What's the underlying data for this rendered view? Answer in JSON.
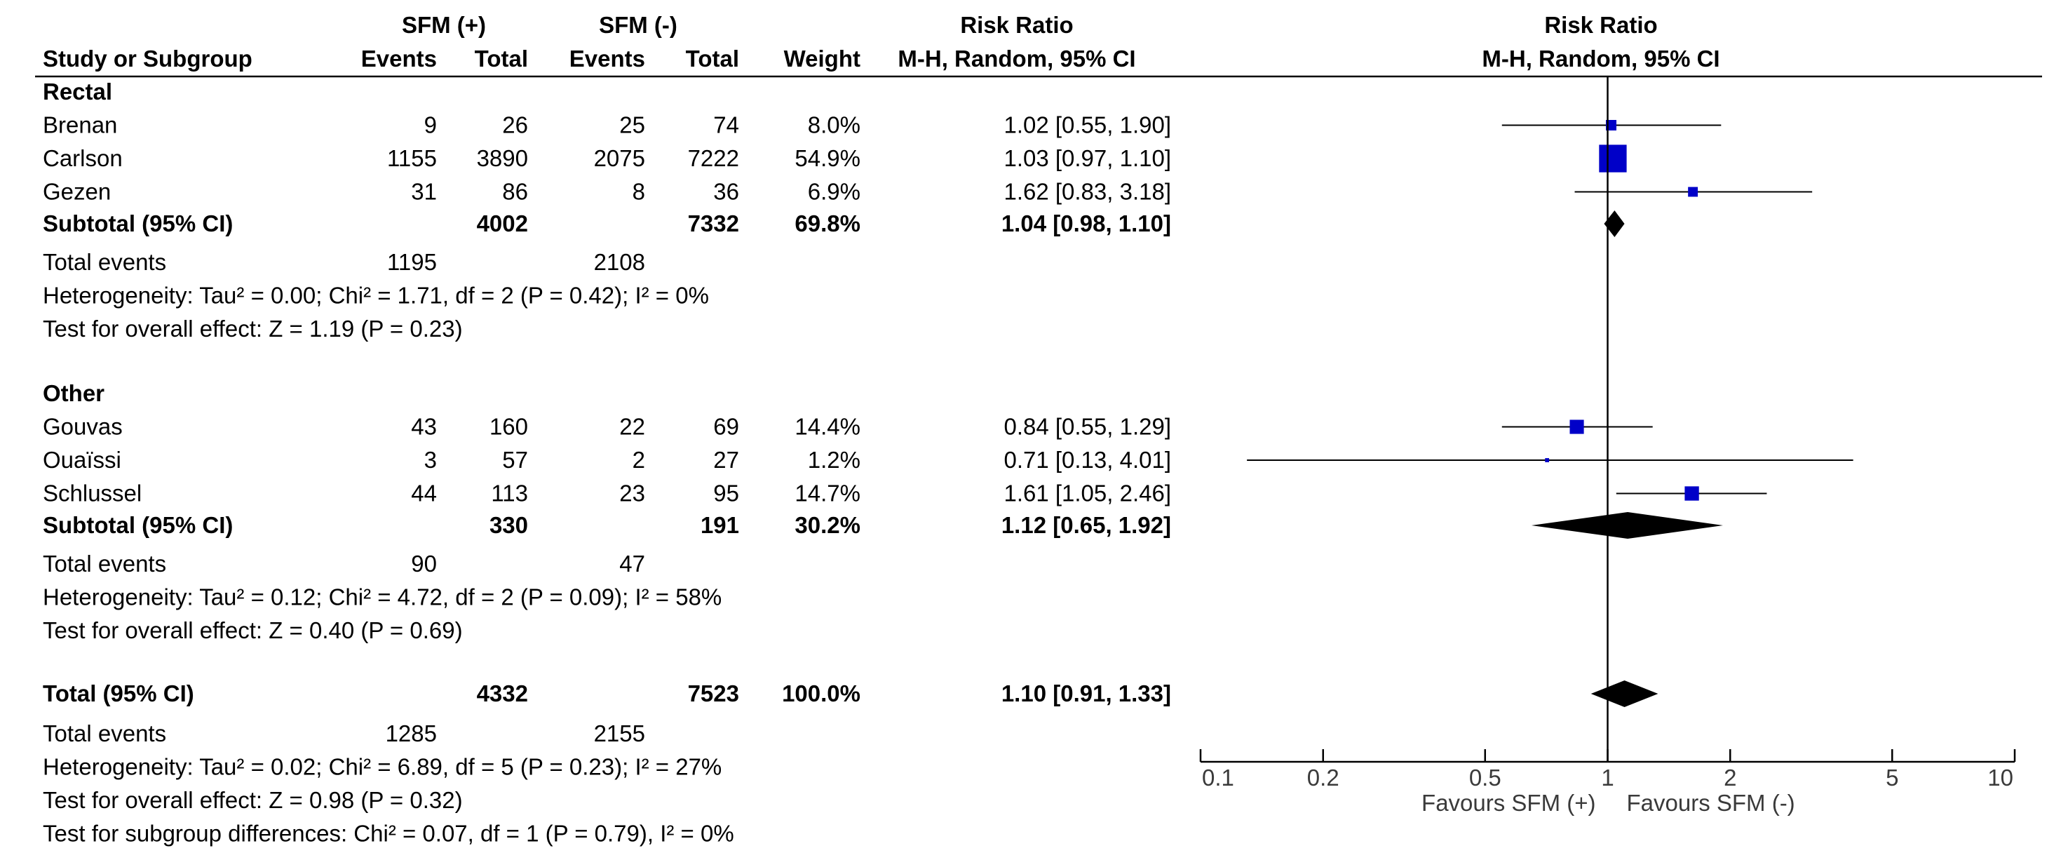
{
  "chart_data": {
    "type": "forest",
    "title": "Risk Ratio",
    "method": "M-H, Random, 95% CI",
    "axis": {
      "scale": "log",
      "ticks": [
        0.1,
        0.2,
        0.5,
        1,
        2,
        5,
        10
      ],
      "tick_labels": [
        "0.1",
        "0.2",
        "0.5",
        "1",
        "2",
        "5",
        "10"
      ],
      "xlim": [
        0.1,
        10
      ],
      "null_value": 1
    },
    "favours_left": "Favours SFM (+)",
    "favours_right": "Favours SFM (-)",
    "headers": {
      "group1": "SFM (+)",
      "group2": "SFM (-)",
      "rr_title": "Risk Ratio",
      "rr_method": "M-H, Random, 95% CI",
      "plot_title": "Risk Ratio",
      "plot_method": "M-H, Random, 95% CI",
      "study": "Study or Subgroup",
      "events1": "Events",
      "total1": "Total",
      "events2": "Events",
      "total2": "Total",
      "weight": "Weight"
    },
    "subgroups": [
      {
        "name": "Rectal",
        "studies": [
          {
            "study": "Brenan",
            "e1": "9",
            "n1": "26",
            "e2": "25",
            "n2": "74",
            "weight": "8.0%",
            "ci_text": "1.02 [0.55, 1.90]",
            "rr": 1.02,
            "lo": 0.55,
            "hi": 1.9,
            "w": 8.0
          },
          {
            "study": "Carlson",
            "e1": "1155",
            "n1": "3890",
            "e2": "2075",
            "n2": "7222",
            "weight": "54.9%",
            "ci_text": "1.03 [0.97, 1.10]",
            "rr": 1.03,
            "lo": 0.97,
            "hi": 1.1,
            "w": 54.9
          },
          {
            "study": "Gezen",
            "e1": "31",
            "n1": "86",
            "e2": "8",
            "n2": "36",
            "weight": "6.9%",
            "ci_text": "1.62 [0.83, 3.18]",
            "rr": 1.62,
            "lo": 0.83,
            "hi": 3.18,
            "w": 6.9
          }
        ],
        "subtotal": {
          "label": "Subtotal (95% CI)",
          "n1": "4002",
          "n2": "7332",
          "weight": "69.8%",
          "ci_text": "1.04 [0.98, 1.10]",
          "rr": 1.04,
          "lo": 0.98,
          "hi": 1.1
        },
        "total_events": {
          "label": "Total events",
          "e1": "1195",
          "e2": "2108"
        },
        "heterogeneity": "Heterogeneity: Tau² = 0.00; Chi² = 1.71, df = 2 (P = 0.42); I² = 0%",
        "overall": "Test for overall effect: Z = 1.19 (P = 0.23)"
      },
      {
        "name": "Other",
        "studies": [
          {
            "study": "Gouvas",
            "e1": "43",
            "n1": "160",
            "e2": "22",
            "n2": "69",
            "weight": "14.4%",
            "ci_text": "0.84 [0.55, 1.29]",
            "rr": 0.84,
            "lo": 0.55,
            "hi": 1.29,
            "w": 14.4
          },
          {
            "study": "Ouaïssi",
            "e1": "3",
            "n1": "57",
            "e2": "2",
            "n2": "27",
            "weight": "1.2%",
            "ci_text": "0.71 [0.13, 4.01]",
            "rr": 0.71,
            "lo": 0.13,
            "hi": 4.01,
            "w": 1.2
          },
          {
            "study": "Schlussel",
            "e1": "44",
            "n1": "113",
            "e2": "23",
            "n2": "95",
            "weight": "14.7%",
            "ci_text": "1.61 [1.05, 2.46]",
            "rr": 1.61,
            "lo": 1.05,
            "hi": 2.46,
            "w": 14.7
          }
        ],
        "subtotal": {
          "label": "Subtotal (95% CI)",
          "n1": "330",
          "n2": "191",
          "weight": "30.2%",
          "ci_text": "1.12 [0.65, 1.92]",
          "rr": 1.12,
          "lo": 0.65,
          "hi": 1.92
        },
        "total_events": {
          "label": "Total events",
          "e1": "90",
          "e2": "47"
        },
        "heterogeneity": "Heterogeneity: Tau² = 0.12; Chi² = 4.72, df = 2 (P = 0.09); I² = 58%",
        "overall": "Test for overall effect: Z = 0.40 (P = 0.69)"
      }
    ],
    "total": {
      "label": "Total (95% CI)",
      "n1": "4332",
      "n2": "7523",
      "weight": "100.0%",
      "ci_text": "1.10 [0.91, 1.33]",
      "rr": 1.1,
      "lo": 0.91,
      "hi": 1.33
    },
    "total_events": {
      "label": "Total events",
      "e1": "1285",
      "e2": "2155"
    },
    "heterogeneity": "Heterogeneity: Tau² = 0.02; Chi² = 6.89, df = 5 (P = 0.23); I² = 27%",
    "overall": "Test for overall effect: Z = 0.98 (P = 0.32)",
    "subgroup_diff": "Test for subgroup differences: Chi² = 0.07, df = 1 (P = 0.79), I² = 0%",
    "colors": {
      "study_square": "#0000c8",
      "diamond": "#000000",
      "line": "#000000"
    }
  }
}
